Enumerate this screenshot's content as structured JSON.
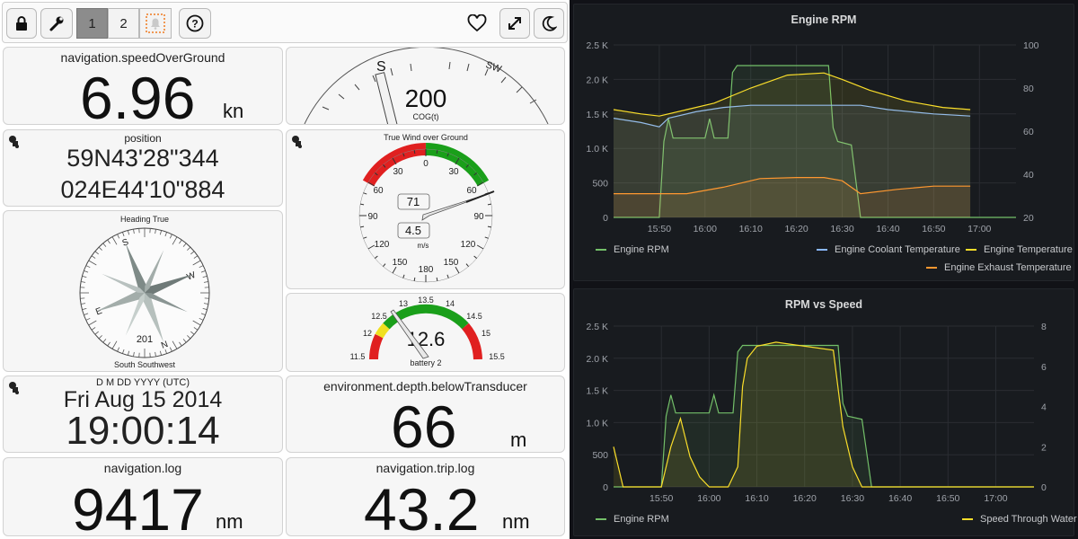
{
  "toolbar": {
    "page1_label": "1",
    "page2_label": "2"
  },
  "speed": {
    "title": "navigation.speedOverGround",
    "value": "6.96",
    "unit": "kn"
  },
  "cog": {
    "value": "200",
    "label": "COG(t)",
    "tick_s": "S",
    "tick_sw": "SW"
  },
  "position": {
    "title": "position",
    "lat": "59N43'28\"344",
    "lon": "024E44'10\"884"
  },
  "wind": {
    "title": "True Wind over Ground",
    "angle_value": "71",
    "speed_value": "4.5",
    "speed_unit": "m/s",
    "scale_labels": [
      "0",
      "30",
      "30",
      "60",
      "60",
      "90",
      "90",
      "120",
      "120",
      "150",
      "150",
      "180"
    ]
  },
  "compass": {
    "title": "Heading True",
    "value": "201",
    "label": "South Southwest",
    "cardinals": {
      "s": "S",
      "w": "W",
      "n": "N",
      "e": "E"
    }
  },
  "battery": {
    "value": "12.6",
    "label": "battery 2",
    "scale_labels": [
      "11.5",
      "12",
      "12.5",
      "13",
      "13.5",
      "14",
      "14.5",
      "15",
      "15.5"
    ]
  },
  "datetime": {
    "format": "D M DD YYYY (UTC)",
    "date": "Fri Aug 15 2014",
    "time": "19:00:14"
  },
  "depth": {
    "title": "environment.depth.belowTransducer",
    "value": "66",
    "unit": "m"
  },
  "log": {
    "title": "navigation.log",
    "value": "9417",
    "unit": "nm"
  },
  "trip": {
    "title": "navigation.trip.log",
    "value": "43.2",
    "unit": "nm"
  },
  "colors": {
    "rpm": "#73bf69",
    "coolant": "#8ab8ff",
    "engine_temp": "#fade2a",
    "exhaust": "#ff9830",
    "speed": "#fade2a",
    "gauge_green": "#1a9f1a",
    "gauge_red": "#e02020",
    "gauge_yellow": "#f0e020"
  },
  "chart_data": [
    {
      "type": "line",
      "title": "Engine RPM",
      "x_ticks": [
        "15:50",
        "16:00",
        "16:10",
        "16:20",
        "16:30",
        "16:40",
        "16:50",
        "17:00"
      ],
      "y_left_ticks": [
        "0",
        "500",
        "1.0 K",
        "1.5 K",
        "2.0 K",
        "2.5 K"
      ],
      "y_right_ticks": [
        "20",
        "40",
        "60",
        "80",
        "100"
      ],
      "y_left_range": [
        0,
        2500
      ],
      "y_right_range": [
        20,
        100
      ],
      "x_range_minutes": [
        -10,
        78
      ],
      "series": [
        {
          "name": "Engine RPM",
          "axis": "left",
          "points": [
            [
              -10,
              0
            ],
            [
              0,
              0
            ],
            [
              1,
              1100
            ],
            [
              2,
              1430
            ],
            [
              3,
              1150
            ],
            [
              10,
              1150
            ],
            [
              11,
              1430
            ],
            [
              12,
              1150
            ],
            [
              15,
              1150
            ],
            [
              16,
              2100
            ],
            [
              17,
              2200
            ],
            [
              25,
              2200
            ],
            [
              37,
              2200
            ],
            [
              38,
              1300
            ],
            [
              39,
              1100
            ],
            [
              42,
              1050
            ],
            [
              44,
              0
            ],
            [
              78,
              0
            ]
          ]
        },
        {
          "name": "Engine Coolant Temperature",
          "axis": "right",
          "points": [
            [
              -10,
              66
            ],
            [
              -4,
              64
            ],
            [
              0,
              62
            ],
            [
              2,
              66
            ],
            [
              8,
              69
            ],
            [
              14,
              71
            ],
            [
              20,
              72
            ],
            [
              28,
              72
            ],
            [
              36,
              72
            ],
            [
              44,
              72
            ],
            [
              50,
              70
            ],
            [
              60,
              68
            ],
            [
              68,
              67
            ]
          ]
        },
        {
          "name": "Engine Temperature",
          "axis": "right",
          "points": [
            [
              -10,
              70
            ],
            [
              -4,
              68
            ],
            [
              0,
              67
            ],
            [
              6,
              70
            ],
            [
              12,
              73
            ],
            [
              20,
              80
            ],
            [
              28,
              86
            ],
            [
              36,
              87
            ],
            [
              40,
              84
            ],
            [
              46,
              79
            ],
            [
              54,
              74
            ],
            [
              62,
              71
            ],
            [
              68,
              70
            ]
          ]
        },
        {
          "name": "Engine Exhaust Temperature",
          "axis": "right",
          "points": [
            [
              -10,
              31
            ],
            [
              0,
              31
            ],
            [
              6,
              31
            ],
            [
              14,
              34
            ],
            [
              22,
              38
            ],
            [
              30,
              38.5
            ],
            [
              36,
              38.5
            ],
            [
              40,
              37
            ],
            [
              44,
              31
            ],
            [
              52,
              33
            ],
            [
              60,
              34.5
            ],
            [
              68,
              34.5
            ]
          ]
        }
      ]
    },
    {
      "type": "line",
      "title": "RPM vs Speed",
      "x_ticks": [
        "15:50",
        "16:00",
        "16:10",
        "16:20",
        "16:30",
        "16:40",
        "16:50",
        "17:00"
      ],
      "y_left_ticks": [
        "0",
        "500",
        "1.0 K",
        "1.5 K",
        "2.0 K",
        "2.5 K"
      ],
      "y_right_ticks": [
        "0",
        "2",
        "4",
        "6",
        "8"
      ],
      "y_left_range": [
        0,
        2500
      ],
      "y_right_range": [
        0,
        8
      ],
      "x_range_minutes": [
        -10,
        78
      ],
      "series": [
        {
          "name": "Engine RPM",
          "axis": "left",
          "points": [
            [
              -10,
              0
            ],
            [
              0,
              0
            ],
            [
              1,
              1100
            ],
            [
              2,
              1430
            ],
            [
              3,
              1150
            ],
            [
              10,
              1150
            ],
            [
              11,
              1430
            ],
            [
              12,
              1150
            ],
            [
              15,
              1150
            ],
            [
              16,
              2100
            ],
            [
              17,
              2200
            ],
            [
              25,
              2200
            ],
            [
              37,
              2200
            ],
            [
              38,
              1300
            ],
            [
              39,
              1100
            ],
            [
              42,
              1050
            ],
            [
              44,
              0
            ],
            [
              78,
              0
            ]
          ]
        },
        {
          "name": "Speed Through Water",
          "axis": "right",
          "points": [
            [
              -10,
              2
            ],
            [
              -8,
              0
            ],
            [
              0,
              0
            ],
            [
              2,
              2
            ],
            [
              4,
              3.4
            ],
            [
              6,
              1.5
            ],
            [
              8,
              0.5
            ],
            [
              10,
              0
            ],
            [
              14,
              0
            ],
            [
              16,
              1
            ],
            [
              17,
              5
            ],
            [
              18,
              6.4
            ],
            [
              20,
              7
            ],
            [
              24,
              7.2
            ],
            [
              30,
              7
            ],
            [
              36,
              6.8
            ],
            [
              38,
              3
            ],
            [
              40,
              1
            ],
            [
              42,
              0
            ],
            [
              78,
              0
            ]
          ]
        }
      ]
    }
  ]
}
